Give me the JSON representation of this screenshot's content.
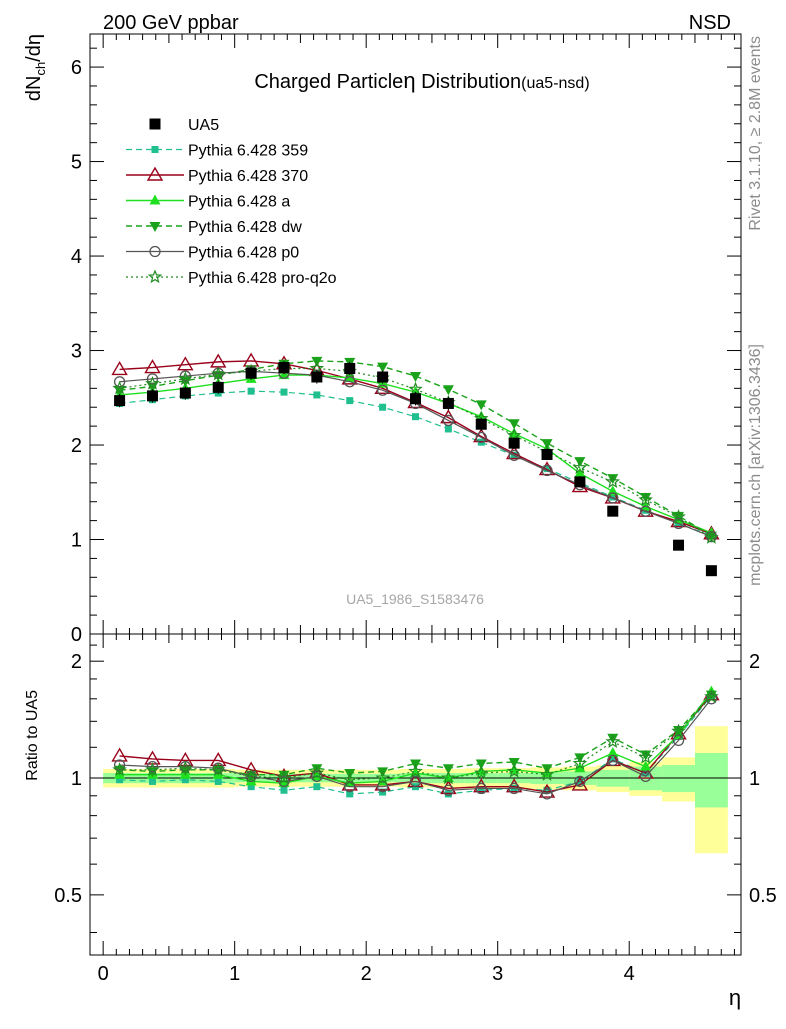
{
  "header": {
    "left": "200 GeV ppbar",
    "right": "NSD"
  },
  "side_labels": {
    "rivet": "Rivet 3.1.10, ≥ 2.8M events",
    "mcplots": "mcplots.cern.ch [arXiv:1306.3436]"
  },
  "colors": {
    "data": "#000000",
    "p359": "#1fbf8f",
    "p370": "#99001a",
    "pa": "#1fe01f",
    "pdw": "#1aa31a",
    "pp0": "#555555",
    "pq2o": "#238b23",
    "band_inner": "#99ff99",
    "band_outer": "#ffff99"
  },
  "chart_data": [
    {
      "type": "line",
      "panel": "main",
      "title": "Charged Particle",
      "title_symbol": "η",
      "title_rest": " Distribution",
      "title_tag": "(ua5-nsd)",
      "ylabel_main": "dN",
      "ylabel_sub": "ch",
      "ylabel_tail": "/dη",
      "xlabel": "η",
      "xlim": [
        -0.1,
        4.85
      ],
      "ylim": [
        0,
        6.35
      ],
      "yticks": [
        0,
        1,
        2,
        3,
        4,
        5,
        6
      ],
      "ytick_labels": [
        "0",
        "1",
        "2",
        "3",
        "4",
        "5",
        "6"
      ],
      "watermark": "UA5_1986_S1583476",
      "x": [
        0.125,
        0.375,
        0.625,
        0.875,
        1.125,
        1.375,
        1.625,
        1.875,
        2.125,
        2.375,
        2.625,
        2.875,
        3.125,
        3.375,
        3.625,
        3.875,
        4.125,
        4.375,
        4.625
      ],
      "data": {
        "name": "UA5",
        "values": [
          2.47,
          2.52,
          2.55,
          2.61,
          2.76,
          2.82,
          2.72,
          2.81,
          2.72,
          2.49,
          2.44,
          2.22,
          2.02,
          1.9,
          1.61,
          1.3,
          null,
          0.94,
          0.67
        ],
        "errors": [
          0.07,
          0.07,
          0.07,
          0.07,
          0.07,
          0.07,
          0.07,
          0.07,
          0.07,
          0.07,
          0.07,
          0.07,
          0.06,
          0.06,
          0.06,
          0.05,
          null,
          0.05,
          0.05
        ]
      },
      "series": [
        {
          "name": "Pythia 6.428 359",
          "values": [
            2.44,
            2.48,
            2.52,
            2.55,
            2.57,
            2.56,
            2.53,
            2.47,
            2.4,
            2.3,
            2.17,
            2.03,
            1.89,
            1.75,
            1.6,
            1.45,
            1.31,
            1.17,
            1.04
          ]
        },
        {
          "name": "Pythia 6.428 370",
          "values": [
            2.8,
            2.82,
            2.85,
            2.88,
            2.89,
            2.86,
            2.79,
            2.7,
            2.6,
            2.45,
            2.29,
            2.09,
            1.91,
            1.74,
            1.56,
            1.44,
            1.3,
            1.19,
            1.06
          ]
        },
        {
          "name": "Pythia 6.428 a",
          "values": [
            2.53,
            2.56,
            2.6,
            2.65,
            2.7,
            2.74,
            2.74,
            2.71,
            2.65,
            2.56,
            2.44,
            2.3,
            2.12,
            1.96,
            1.7,
            1.51,
            1.35,
            1.21,
            1.07
          ]
        },
        {
          "name": "Pythia 6.428 dw",
          "values": [
            2.58,
            2.62,
            2.68,
            2.74,
            2.8,
            2.86,
            2.89,
            2.88,
            2.83,
            2.73,
            2.59,
            2.43,
            2.23,
            2.02,
            1.83,
            1.65,
            1.45,
            1.25,
            1.04
          ]
        },
        {
          "name": "Pythia 6.428 p0",
          "values": [
            2.67,
            2.7,
            2.73,
            2.76,
            2.78,
            2.76,
            2.74,
            2.67,
            2.58,
            2.44,
            2.26,
            2.08,
            1.89,
            1.73,
            1.58,
            1.44,
            1.3,
            1.17,
            1.03
          ]
        },
        {
          "name": "Pythia 6.428 pro-q2o",
          "values": [
            2.6,
            2.65,
            2.7,
            2.75,
            2.78,
            2.81,
            2.81,
            2.78,
            2.71,
            2.59,
            2.45,
            2.28,
            2.1,
            1.93,
            1.76,
            1.61,
            1.42,
            1.24,
            1.02
          ]
        }
      ]
    },
    {
      "type": "line",
      "panel": "ratio",
      "ylabel": "Ratio to UA5",
      "xlabel": "η",
      "xlim": [
        -0.1,
        4.85
      ],
      "ylim": [
        0.35,
        2.35
      ],
      "yticks": [
        0.5,
        1,
        2
      ],
      "ytick_labels": [
        "0.5",
        "1",
        "2"
      ],
      "xticks": [
        0,
        1,
        2,
        3,
        4
      ],
      "xtick_labels": [
        "0",
        "1",
        "2",
        "3",
        "4"
      ],
      "band_inner": [
        0.03,
        0.03,
        0.03,
        0.03,
        0.025,
        0.025,
        0.025,
        0.025,
        0.025,
        0.03,
        0.03,
        0.03,
        0.03,
        0.035,
        0.04,
        0.05,
        0.07,
        0.08,
        0.16
      ],
      "band_outer": [
        0.055,
        0.055,
        0.055,
        0.055,
        0.05,
        0.05,
        0.05,
        0.05,
        0.05,
        0.055,
        0.055,
        0.06,
        0.06,
        0.065,
        0.07,
        0.08,
        0.1,
        0.13,
        0.36
      ],
      "series": [
        {
          "name": "Pythia 6.428 359",
          "values": [
            0.99,
            0.98,
            0.99,
            0.98,
            0.95,
            0.93,
            0.95,
            0.91,
            0.92,
            0.95,
            0.91,
            0.93,
            0.94,
            0.93,
            0.98,
            1.12,
            1.03,
            1.28,
            1.63
          ]
        },
        {
          "name": "Pythia 6.428 370",
          "values": [
            1.14,
            1.12,
            1.11,
            1.11,
            1.05,
            1.01,
            1.03,
            0.96,
            0.96,
            0.98,
            0.94,
            0.95,
            0.95,
            0.92,
            0.96,
            1.11,
            1.03,
            1.3,
            1.64
          ]
        },
        {
          "name": "Pythia 6.428 a",
          "values": [
            1.02,
            1.02,
            1.02,
            1.02,
            0.98,
            0.97,
            1.01,
            0.97,
            0.98,
            1.03,
            1.0,
            1.04,
            1.05,
            1.03,
            1.06,
            1.16,
            1.07,
            1.29,
            1.67
          ]
        },
        {
          "name": "Pythia 6.428 dw",
          "values": [
            1.05,
            1.04,
            1.05,
            1.05,
            1.02,
            1.02,
            1.06,
            1.03,
            1.04,
            1.09,
            1.06,
            1.09,
            1.1,
            1.06,
            1.13,
            1.27,
            1.15,
            1.33,
            1.64
          ]
        },
        {
          "name": "Pythia 6.428 p0",
          "values": [
            1.08,
            1.07,
            1.07,
            1.06,
            1.01,
            0.98,
            1.01,
            0.95,
            0.95,
            0.98,
            0.93,
            0.94,
            0.94,
            0.91,
            0.98,
            1.11,
            1.01,
            1.25,
            1.6
          ]
        },
        {
          "name": "Pythia 6.428 pro-q2o",
          "values": [
            1.05,
            1.05,
            1.06,
            1.05,
            1.01,
            1.0,
            1.03,
            0.99,
            1.0,
            1.04,
            1.0,
            1.03,
            1.04,
            1.02,
            1.09,
            1.24,
            1.13,
            1.32,
            1.62
          ]
        }
      ]
    }
  ]
}
